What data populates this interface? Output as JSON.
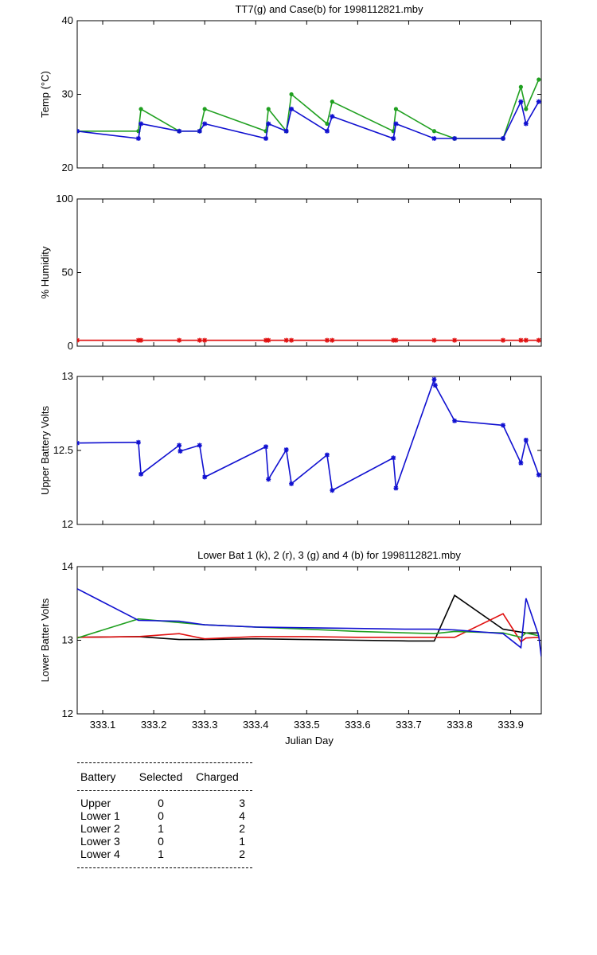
{
  "chart_data": [
    {
      "type": "line",
      "title": "TT7(g) and Case(b) for 1998112821.mby",
      "xlabel": "",
      "ylabel": "Temp  (°C)",
      "xlim": [
        333.05,
        333.96
      ],
      "ylim": [
        20,
        40
      ],
      "yticks": [
        "20",
        "30",
        "40"
      ],
      "series": [
        {
          "name": "TT7",
          "color": "#20a020",
          "marker": "dot",
          "x": [
            333.05,
            333.17,
            333.175,
            333.25,
            333.29,
            333.3,
            333.42,
            333.425,
            333.46,
            333.47,
            333.54,
            333.55,
            333.67,
            333.675,
            333.75,
            333.79,
            333.885,
            333.92,
            333.93,
            333.955
          ],
          "y": [
            25,
            25,
            28,
            25,
            25,
            28,
            25,
            28,
            25,
            30,
            26,
            29,
            25,
            28,
            25,
            24,
            24,
            31,
            28,
            32
          ]
        },
        {
          "name": "Case",
          "color": "#1010d0",
          "marker": "star",
          "x": [
            333.05,
            333.17,
            333.175,
            333.25,
            333.29,
            333.3,
            333.42,
            333.425,
            333.46,
            333.47,
            333.54,
            333.55,
            333.67,
            333.675,
            333.75,
            333.79,
            333.885,
            333.92,
            333.93,
            333.955
          ],
          "y": [
            25,
            24,
            26,
            25,
            25,
            26,
            24,
            26,
            25,
            28,
            25,
            27,
            24,
            26,
            24,
            24,
            24,
            29,
            26,
            29
          ]
        }
      ]
    },
    {
      "type": "line",
      "title": "",
      "xlabel": "",
      "ylabel": "% Humidity",
      "xlim": [
        333.05,
        333.96
      ],
      "ylim": [
        0,
        100
      ],
      "yticks": [
        "0",
        "50",
        "100"
      ],
      "series": [
        {
          "name": "Humidity",
          "color": "#e01010",
          "marker": "star",
          "x": [
            333.05,
            333.17,
            333.175,
            333.25,
            333.29,
            333.3,
            333.42,
            333.425,
            333.46,
            333.47,
            333.54,
            333.55,
            333.67,
            333.675,
            333.75,
            333.79,
            333.885,
            333.92,
            333.93,
            333.955
          ],
          "y": [
            4,
            4,
            4,
            4,
            4,
            4,
            4,
            4,
            4,
            4,
            4,
            4,
            4,
            4,
            4,
            4,
            4,
            4,
            4,
            4
          ]
        }
      ]
    },
    {
      "type": "line",
      "title": "",
      "xlabel": "",
      "ylabel": "Upper Battery Volts",
      "xlim": [
        333.05,
        333.96
      ],
      "ylim": [
        12,
        13
      ],
      "yticks": [
        "12",
        "12.5",
        "13"
      ],
      "series": [
        {
          "name": "Upper",
          "color": "#1010d0",
          "marker": "star",
          "x": [
            333.05,
            333.17,
            333.175,
            333.25,
            333.252,
            333.29,
            333.3,
            333.42,
            333.425,
            333.46,
            333.47,
            333.54,
            333.55,
            333.67,
            333.675,
            333.75,
            333.752,
            333.79,
            333.885,
            333.92,
            333.93,
            333.955
          ],
          "y": [
            12.55,
            12.555,
            12.34,
            12.535,
            12.495,
            12.535,
            12.32,
            12.525,
            12.305,
            12.505,
            12.275,
            12.47,
            12.23,
            12.45,
            12.245,
            12.98,
            12.94,
            12.7,
            12.67,
            12.415,
            12.57,
            12.335
          ]
        }
      ]
    },
    {
      "type": "line",
      "title": "Lower Bat 1 (k), 2 (r), 3 (g) and 4 (b) for 1998112821.mby",
      "xlabel": "Julian Day",
      "ylabel": "Lower Batter Volts",
      "xlim": [
        333.05,
        333.96
      ],
      "ylim": [
        12,
        14
      ],
      "yticks": [
        "12",
        "13",
        "14"
      ],
      "xticks": [
        "333.1",
        "333.2",
        "333.3",
        "333.4",
        "333.5",
        "333.6",
        "333.7",
        "333.8",
        "333.9"
      ],
      "series": [
        {
          "name": "Lower 1",
          "color": "#000000",
          "x": [
            333.05,
            333.17,
            333.25,
            333.3,
            333.4,
            333.5,
            333.6,
            333.7,
            333.75,
            333.79,
            333.885,
            333.92,
            333.93,
            333.955
          ],
          "y": [
            13.04,
            13.05,
            13.01,
            13.01,
            13.02,
            13.01,
            13.0,
            12.99,
            12.99,
            13.61,
            13.15,
            13.11,
            13.1,
            13.1
          ]
        },
        {
          "name": "Lower 2",
          "color": "#e01010",
          "x": [
            333.05,
            333.17,
            333.25,
            333.3,
            333.4,
            333.5,
            333.6,
            333.7,
            333.75,
            333.79,
            333.885,
            333.92,
            333.93,
            333.955
          ],
          "y": [
            13.04,
            13.05,
            13.09,
            13.02,
            13.05,
            13.05,
            13.04,
            13.04,
            13.04,
            13.04,
            13.36,
            12.98,
            13.03,
            13.04
          ]
        },
        {
          "name": "Lower 3",
          "color": "#20a020",
          "x": [
            333.05,
            333.17,
            333.25,
            333.3,
            333.4,
            333.5,
            333.6,
            333.7,
            333.75,
            333.79,
            333.885,
            333.92,
            333.93,
            333.955
          ],
          "y": [
            13.03,
            13.29,
            13.24,
            13.21,
            13.18,
            13.15,
            13.12,
            13.1,
            13.09,
            13.12,
            13.1,
            13.04,
            13.1,
            13.06
          ]
        },
        {
          "name": "Lower 4",
          "color": "#1010d0",
          "x": [
            333.05,
            333.17,
            333.25,
            333.3,
            333.4,
            333.5,
            333.6,
            333.7,
            333.75,
            333.79,
            333.885,
            333.92,
            333.93,
            333.955,
            333.96
          ],
          "y": [
            13.7,
            13.27,
            13.26,
            13.21,
            13.18,
            13.17,
            13.16,
            13.15,
            13.15,
            13.14,
            13.09,
            12.9,
            13.57,
            13.06,
            12.78
          ]
        }
      ]
    }
  ],
  "battery_table": {
    "headers": [
      "Battery",
      "Selected",
      "Charged"
    ],
    "rows": [
      [
        "Upper",
        "0",
        "3"
      ],
      [
        "Lower 1",
        "0",
        "4"
      ],
      [
        "Lower 2",
        "1",
        "2"
      ],
      [
        "Lower 3",
        "0",
        "1"
      ],
      [
        "Lower 4",
        "1",
        "2"
      ]
    ]
  }
}
